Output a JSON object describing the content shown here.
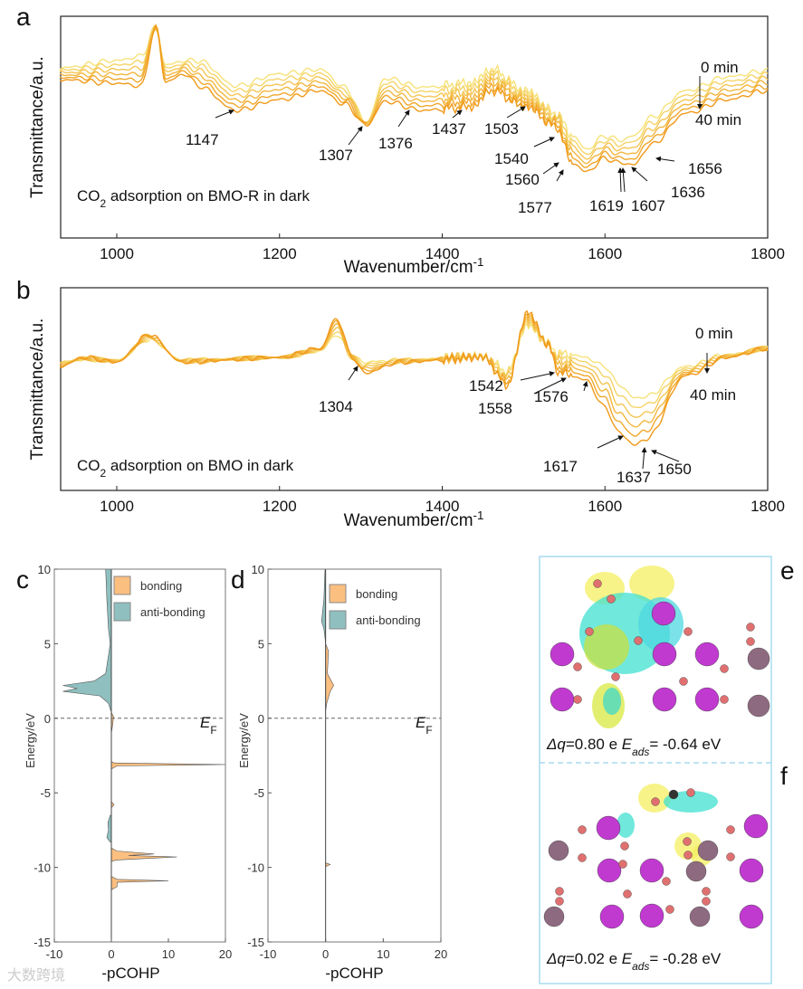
{
  "panel_letters": [
    "a",
    "b",
    "c",
    "d",
    "e",
    "f"
  ],
  "colors": {
    "early": "#f6e27a",
    "late": "#f09a1a",
    "bonding": "#fbbf80",
    "antibonding": "#8fbfbf",
    "frame": "#a8dcf0"
  },
  "chart_data": [
    {
      "type": "line",
      "panel": "a",
      "title": "CO2 adsorption on BMO-R in dark",
      "title_parts": [
        "CO",
        "2",
        " adsorption on BMO-R in dark"
      ],
      "xlabel": "Wavenumber/cm",
      "xlabel_sup": "-1",
      "ylabel": "Transmittance/a.u.",
      "xlim": [
        930,
        1800
      ],
      "xticks": [
        "1000",
        "1200",
        "1400",
        "1600",
        "1800"
      ],
      "legend": {
        "start": "0 min",
        "end": "40 min"
      },
      "peaks": [
        "1147",
        "1307",
        "1376",
        "1437",
        "1503",
        "1540",
        "1560",
        "1577",
        "1619",
        "1607",
        "1636",
        "1656"
      ],
      "x": [
        930,
        1000,
        1030,
        1048,
        1060,
        1085,
        1100,
        1147,
        1200,
        1250,
        1280,
        1307,
        1330,
        1376,
        1437,
        1460,
        1503,
        1540,
        1560,
        1577,
        1600,
        1619,
        1636,
        1656,
        1700,
        1750,
        1800
      ],
      "series": [
        {
          "name": "0 min",
          "values": [
            76.7,
            80,
            82,
            95.1,
            78,
            80,
            80,
            68.6,
            74,
            76,
            68,
            52.2,
            72,
            68,
            70,
            76,
            66.5,
            56.3,
            46.1,
            40,
            46.1,
            44.1,
            46.1,
            54.3,
            66.5,
            72.7,
            75.5
          ]
        },
        {
          "name": "40 min",
          "values": [
            71.4,
            69.8,
            68.6,
            95.1,
            70.6,
            73.9,
            68.6,
            57.6,
            62.4,
            66.5,
            60.4,
            51,
            61.6,
            57.6,
            59.2,
            66.5,
            59.2,
            50.2,
            33.9,
            29.8,
            35.9,
            33.9,
            33.1,
            42,
            56.3,
            62.4,
            66.5
          ]
        }
      ]
    },
    {
      "type": "line",
      "panel": "b",
      "title": "CO2 adsorption on BMO in dark",
      "title_parts": [
        "CO",
        "2",
        " adsorption on BMO in dark"
      ],
      "xlabel": "Wavenumber/cm",
      "xlabel_sup": "-1",
      "ylabel": "Transmittance/a.u.",
      "xlim": [
        930,
        1800
      ],
      "xticks": [
        "1000",
        "1200",
        "1400",
        "1600",
        "1800"
      ],
      "legend": {
        "start": "0 min",
        "end": "40 min"
      },
      "peaks": [
        "1304",
        "1542",
        "1558",
        "1576",
        "1617",
        "1637",
        "1650"
      ],
      "x": [
        930,
        960,
        1000,
        1040,
        1080,
        1200,
        1250,
        1270,
        1290,
        1304,
        1350,
        1450,
        1480,
        1505,
        1530,
        1542,
        1558,
        1576,
        1600,
        1617,
        1637,
        1650,
        1700,
        1750,
        1800
      ],
      "series": [
        {
          "name": "0 min",
          "values": [
            63.4,
            64.7,
            64.3,
            74.6,
            64.3,
            65.6,
            68.8,
            76.8,
            65.6,
            63.4,
            64.3,
            66.5,
            58.9,
            81.3,
            72.3,
            67.9,
            67,
            65.6,
            61.2,
            52.2,
            45.5,
            46.4,
            61.2,
            67,
            70.1
          ]
        },
        {
          "name": "40 min",
          "values": [
            61.2,
            65.6,
            63.4,
            76.8,
            63.4,
            65.6,
            70.1,
            84.8,
            65.6,
            58,
            63.4,
            65.6,
            52.2,
            87.9,
            72.3,
            58.9,
            56.7,
            54.5,
            41.1,
            28.6,
            22.3,
            25.4,
            56.7,
            65.6,
            70.1
          ]
        }
      ]
    },
    {
      "type": "area",
      "panel": "c",
      "xlabel": "-pCOHP",
      "ylabel": "Energy/eV",
      "xlim": [
        -10,
        20
      ],
      "ylim": [
        -15,
        10
      ],
      "xticks": [
        "-10",
        "0",
        "10",
        "20"
      ],
      "yticks": [
        "10",
        "5",
        "0",
        "-5",
        "-10",
        "-15"
      ],
      "fermi_label": "E",
      "fermi_sub": "F",
      "legend": [
        "bonding",
        "anti-bonding"
      ],
      "series": [
        {
          "name": "anti-bonding",
          "segments": [
            [
              [
                10,
                -1
              ],
              [
                8,
                -0.8
              ],
              [
                6,
                -0.5
              ],
              [
                5,
                -0.2
              ],
              [
                4.2,
                -0.5
              ],
              [
                3,
                -1
              ],
              [
                2.5,
                -3
              ],
              [
                2.2,
                -8.5
              ],
              [
                2,
                -6
              ],
              [
                1.8,
                -8.5
              ],
              [
                1.5,
                -2
              ],
              [
                1,
                -0.5
              ],
              [
                0.5,
                -0.1
              ]
            ],
            [
              [
                -6.5,
                -0.2
              ],
              [
                -7,
                -0.6
              ],
              [
                -7.5,
                -0.5
              ],
              [
                -8,
                -0.8
              ],
              [
                -8.3,
                -0.2
              ]
            ]
          ]
        },
        {
          "name": "bonding",
          "segments": [
            [
              [
                0.4,
                0
              ],
              [
                0.1,
                0.4
              ],
              [
                -0.5,
                0.2
              ],
              [
                -1,
                0
              ]
            ],
            [
              [
                -2.9,
                0
              ],
              [
                -3,
                0.5
              ],
              [
                -3.1,
                20
              ],
              [
                -3.2,
                1
              ],
              [
                -3.4,
                0
              ]
            ],
            [
              [
                -5.6,
                0
              ],
              [
                -5.8,
                0.5
              ],
              [
                -6,
                0
              ]
            ],
            [
              [
                -8.7,
                0
              ],
              [
                -8.9,
                1
              ],
              [
                -9.1,
                7.5
              ],
              [
                -9.2,
                3
              ],
              [
                -9.3,
                11.5
              ],
              [
                -9.5,
                1
              ],
              [
                -9.6,
                0
              ]
            ],
            [
              [
                -10.6,
                0
              ],
              [
                -10.8,
                1
              ],
              [
                -10.9,
                10
              ],
              [
                -11,
                1
              ],
              [
                -11.3,
                1
              ],
              [
                -11.5,
                0
              ]
            ]
          ]
        }
      ]
    },
    {
      "type": "area",
      "panel": "d",
      "xlabel": "-pCOHP",
      "ylabel": "Energy/eV",
      "xlim": [
        -10,
        20
      ],
      "ylim": [
        -15,
        10
      ],
      "xticks": [
        "-10",
        "0",
        "10",
        "20"
      ],
      "yticks": [
        "10",
        "5",
        "0",
        "-5",
        "-10",
        "-15"
      ],
      "fermi_label": "E",
      "fermi_sub": "F",
      "legend": [
        "bonding",
        "anti-bonding"
      ],
      "series": [
        {
          "name": "anti-bonding",
          "segments": [
            [
              [
                10,
                -0.1
              ],
              [
                8,
                -0.3
              ],
              [
                6.5,
                -0.7
              ],
              [
                6,
                -0.3
              ],
              [
                5,
                0
              ]
            ]
          ]
        },
        {
          "name": "bonding",
          "segments": [
            [
              [
                5,
                0
              ],
              [
                4.5,
                0.5
              ],
              [
                3,
                0.3
              ],
              [
                2.2,
                1.4
              ],
              [
                1.8,
                0.8
              ],
              [
                1,
                0.2
              ],
              [
                0.5,
                0
              ]
            ],
            [
              [
                -9.7,
                0
              ],
              [
                -9.8,
                0.8
              ],
              [
                -9.95,
                0
              ]
            ]
          ]
        }
      ]
    }
  ],
  "structures": {
    "e": {
      "dq_label": "Δq",
      "dq_value": "=0.80 e",
      "e_label": "E",
      "e_sub": "ads",
      "e_value": "= -0.64 eV"
    },
    "f": {
      "dq_label": "Δq",
      "dq_value": "=0.02 e",
      "e_label": "E",
      "e_sub": "ads",
      "e_value": "= -0.28 eV"
    }
  },
  "watermark": "大数跨境"
}
